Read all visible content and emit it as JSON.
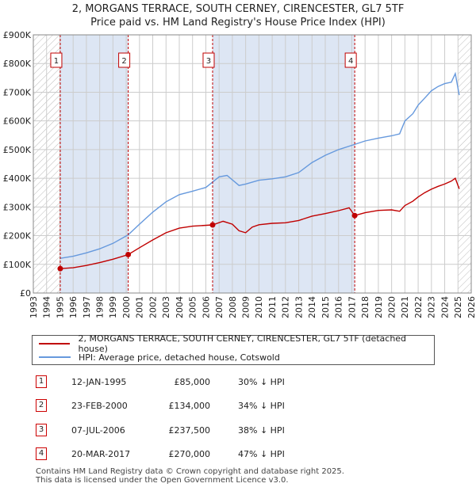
{
  "header": {
    "title": "2, MORGANS TERRACE, SOUTH CERNEY, CIRENCESTER, GL7 5TF",
    "subtitle": "Price paid vs. HM Land Registry's House Price Index (HPI)"
  },
  "colors": {
    "price_paid": "#c00000",
    "hpi": "#6699dd",
    "shade": "#dde6f4",
    "grid": "#cccccc"
  },
  "chart_data": {
    "type": "line",
    "title": "2, MORGANS TERRACE, SOUTH CERNEY, CIRENCESTER, GL7 5TF",
    "subtitle": "Price paid vs. HM Land Registry's House Price Index (HPI)",
    "xlim": [
      1993,
      2026
    ],
    "ylim": [
      0,
      900000
    ],
    "x_ticks": [
      1993,
      1994,
      1995,
      1996,
      1997,
      1998,
      1999,
      2000,
      2001,
      2002,
      2003,
      2004,
      2005,
      2006,
      2007,
      2008,
      2009,
      2010,
      2011,
      2012,
      2013,
      2014,
      2015,
      2016,
      2017,
      2018,
      2019,
      2020,
      2021,
      2022,
      2023,
      2024,
      2025,
      2026
    ],
    "x_tick_labels": [
      "1993",
      "1994",
      "1995",
      "1996",
      "1997",
      "1998",
      "1999",
      "2000",
      "2001",
      "2002",
      "2003",
      "2004",
      "2005",
      "2006",
      "2007",
      "2008",
      "2009",
      "2010",
      "2011",
      "2012",
      "2013",
      "2014",
      "2015",
      "2016",
      "2017",
      "2018",
      "2019",
      "2020",
      "2021",
      "2022",
      "2023",
      "2024",
      "2025",
      "2026"
    ],
    "y_ticks": [
      0,
      100000,
      200000,
      300000,
      400000,
      500000,
      600000,
      700000,
      800000,
      900000
    ],
    "y_tick_labels": [
      "£0",
      "£100K",
      "£200K",
      "£300K",
      "£400K",
      "£500K",
      "£600K",
      "£700K",
      "£800K",
      "£900K"
    ],
    "grid": true,
    "shaded_periods": [
      [
        1995.03,
        2000.15
      ],
      [
        2006.51,
        2017.22
      ]
    ],
    "hatched_periods": [
      [
        1993,
        1995.03
      ],
      [
        2025.0,
        2026
      ]
    ],
    "series": [
      {
        "name": "2, MORGANS TERRACE, SOUTH CERNEY, CIRENCESTER, GL7 5TF (detached house)",
        "color": "#c00000",
        "x": [
          1995.03,
          1996,
          1997,
          1998,
          1999,
          2000.15,
          2001,
          2002,
          2003,
          2004,
          2005,
          2006.51,
          2007.3,
          2008,
          2008.5,
          2009,
          2009.5,
          2010,
          2011,
          2012,
          2013,
          2014,
          2015,
          2016,
          2016.8,
          2017.22,
          2018,
          2019,
          2020,
          2020.6,
          2021,
          2021.6,
          2022,
          2022.5,
          2023,
          2023.5,
          2024,
          2024.5,
          2024.8,
          2025.1
        ],
        "values": [
          85000,
          88000,
          96000,
          106000,
          118000,
          134000,
          158000,
          185000,
          210000,
          226000,
          233000,
          237500,
          250000,
          240000,
          217000,
          210000,
          230000,
          238000,
          243000,
          245000,
          253000,
          268000,
          277000,
          287000,
          297000,
          270000,
          280000,
          288000,
          290000,
          285000,
          305000,
          320000,
          335000,
          350000,
          362000,
          372000,
          380000,
          390000,
          400000,
          363000
        ]
      },
      {
        "name": "HPI: Average price, detached house, Cotswold",
        "color": "#6699dd",
        "x": [
          1995.03,
          1996,
          1997,
          1998,
          1999,
          2000.15,
          2001,
          2002,
          2003,
          2004,
          2005,
          2006,
          2007,
          2007.6,
          2008.5,
          2009,
          2010,
          2011,
          2012,
          2013,
          2014,
          2015,
          2016,
          2017,
          2018,
          2019,
          2020,
          2020.6,
          2021,
          2021.6,
          2022,
          2022.5,
          2023,
          2023.5,
          2024,
          2024.5,
          2024.8,
          2025.1
        ],
        "values": [
          121000,
          128000,
          140000,
          154000,
          173000,
          203000,
          240000,
          282000,
          318000,
          343000,
          355000,
          368000,
          405000,
          410000,
          375000,
          380000,
          393000,
          398000,
          405000,
          420000,
          455000,
          480000,
          500000,
          515000,
          530000,
          540000,
          548000,
          555000,
          600000,
          625000,
          655000,
          680000,
          705000,
          720000,
          730000,
          735000,
          765000,
          690000
        ]
      }
    ],
    "transactions": [
      {
        "marker": "1",
        "x": 1995.03,
        "price": 85000
      },
      {
        "marker": "2",
        "x": 2000.15,
        "price": 134000
      },
      {
        "marker": "3",
        "x": 2006.51,
        "price": 237500
      },
      {
        "marker": "4",
        "x": 2017.22,
        "price": 270000
      }
    ]
  },
  "legend": {
    "price_paid_label": "2, MORGANS TERRACE, SOUTH CERNEY, CIRENCESTER, GL7 5TF (detached house)",
    "hpi_label": "HPI: Average price, detached house, Cotswold"
  },
  "transactions_table": [
    {
      "num": "1",
      "date": "12-JAN-1995",
      "price": "£85,000",
      "hpi": "30% ↓ HPI"
    },
    {
      "num": "2",
      "date": "23-FEB-2000",
      "price": "£134,000",
      "hpi": "34% ↓ HPI"
    },
    {
      "num": "3",
      "date": "07-JUL-2006",
      "price": "£237,500",
      "hpi": "38% ↓ HPI"
    },
    {
      "num": "4",
      "date": "20-MAR-2017",
      "price": "£270,000",
      "hpi": "47% ↓ HPI"
    }
  ],
  "footer": {
    "line1": "Contains HM Land Registry data © Crown copyright and database right 2025.",
    "line2": "This data is licensed under the Open Government Licence v3.0."
  }
}
